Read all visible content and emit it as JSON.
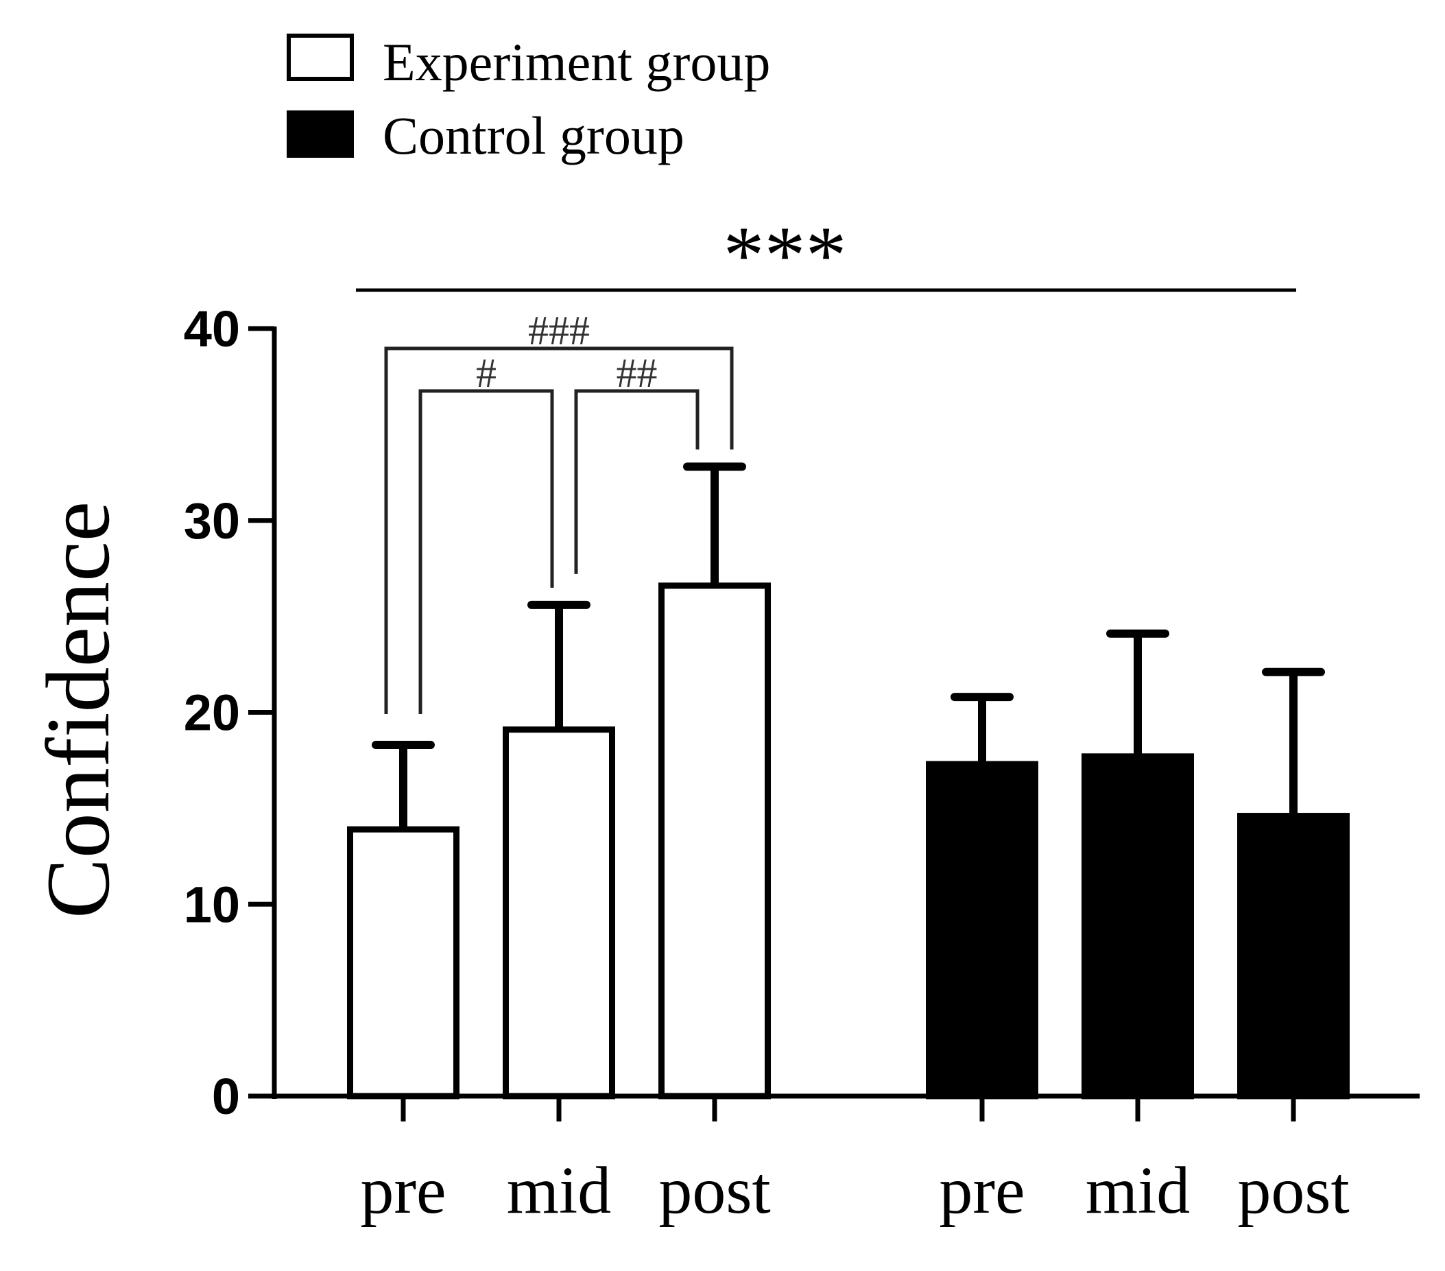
{
  "chart_data": {
    "type": "bar",
    "title": "",
    "xlabel": "",
    "ylabel": "Confidence",
    "ylim": [
      0,
      40
    ],
    "yticks": [
      0,
      10,
      20,
      30,
      40
    ],
    "grid": false,
    "legend_position": "top-left",
    "groups": [
      {
        "name": "Experiment group",
        "fill": "#ffffff",
        "stroke": "#000000",
        "categories": [
          "pre",
          "mid",
          "post"
        ],
        "values": [
          13.9,
          19.1,
          26.6
        ],
        "errors": [
          4.4,
          6.5,
          6.2
        ]
      },
      {
        "name": "Control group",
        "fill": "#000000",
        "stroke": "#000000",
        "categories": [
          "pre",
          "mid",
          "post"
        ],
        "values": [
          17.3,
          17.7,
          14.6
        ],
        "errors": [
          3.5,
          6.4,
          7.5
        ]
      }
    ],
    "annotations": {
      "overall": {
        "label": "***",
        "from_group": 0,
        "to_group": 1
      },
      "brackets": [
        {
          "group": 0,
          "from": 0,
          "to": 2,
          "label": "###",
          "level": 2
        },
        {
          "group": 0,
          "from": 0,
          "to": 1,
          "label": "#",
          "level": 1
        },
        {
          "group": 0,
          "from": 1,
          "to": 2,
          "label": "##",
          "level": 1
        }
      ]
    }
  }
}
